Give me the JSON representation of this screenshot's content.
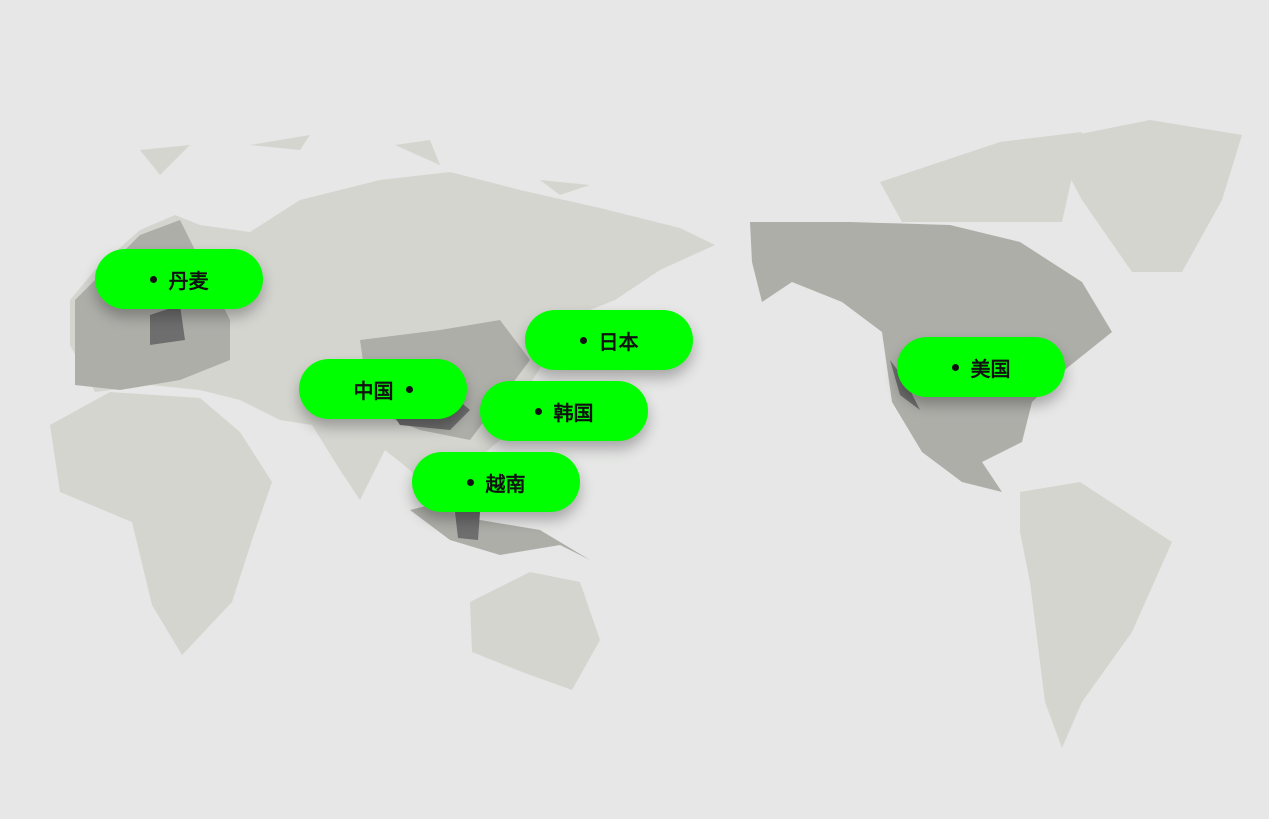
{
  "map": {
    "colors": {
      "background": "#e6e7e6",
      "land_light": "#d5d5d0",
      "land_mid": "#aeaea9",
      "land_highlight": "#6e6e6e",
      "marker": "#00ff00"
    },
    "markers": [
      {
        "id": "denmark",
        "label": "丹麦",
        "dot": "before"
      },
      {
        "id": "japan",
        "label": "日本",
        "dot": "before"
      },
      {
        "id": "china",
        "label": "中国",
        "dot": "after"
      },
      {
        "id": "korea",
        "label": "韩国",
        "dot": "before"
      },
      {
        "id": "vietnam",
        "label": "越南",
        "dot": "before"
      },
      {
        "id": "usa",
        "label": "美国",
        "dot": "before"
      }
    ]
  }
}
